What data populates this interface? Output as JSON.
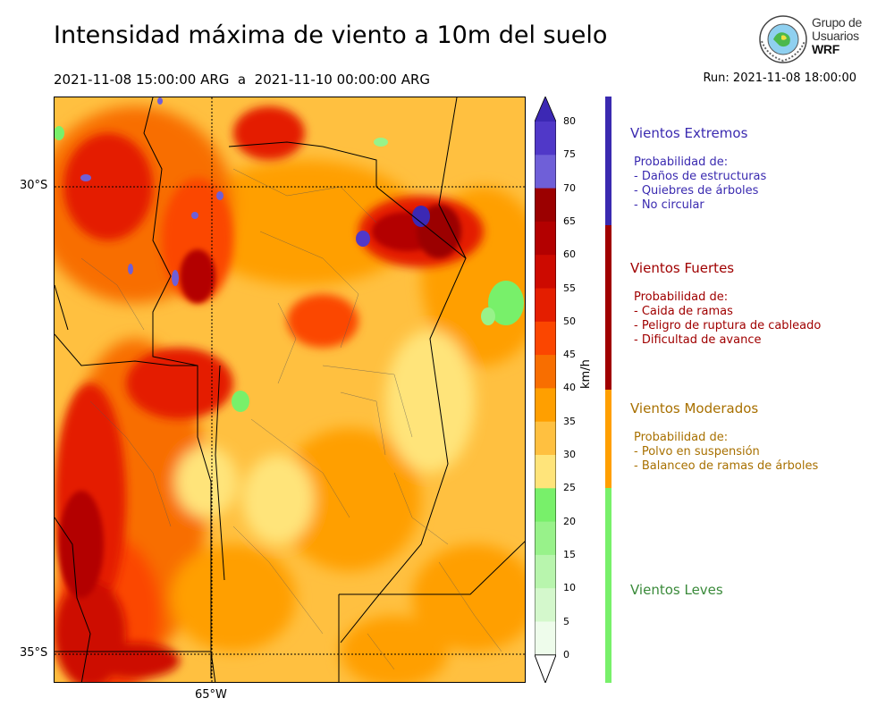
{
  "title": "Intensidad máxima de viento a 10m del suelo",
  "period": "2021-11-08 15:00:00 ARG  a  2021-11-10 00:00:00 ARG",
  "run": "Run: 2021-11-08 18:00:00",
  "logo": {
    "line1": "Grupo de",
    "line2": "Usuarios",
    "line3": "WRF"
  },
  "axes": {
    "lat_top": "30°S",
    "lat_bottom": "35°S",
    "lon": "65°W"
  },
  "colorbar": {
    "unit": "km/h",
    "ticks": [
      "80",
      "75",
      "70",
      "65",
      "60",
      "55",
      "50",
      "45",
      "40",
      "35",
      "30",
      "25",
      "20",
      "15",
      "10",
      "5",
      "0"
    ],
    "colors": [
      "#3c28b4",
      "#5038c8",
      "#6f5fd8",
      "#9b0000",
      "#b30000",
      "#cd0a00",
      "#e41e00",
      "#fb4600",
      "#f86e00",
      "#ff9f00",
      "#ffc040",
      "#ffe47a",
      "#78f06a",
      "#98f28a",
      "#b8f5ad",
      "#d4f8cc",
      "#eefceb"
    ]
  },
  "categories": [
    {
      "title": "Vientos Extremos",
      "color": "#3a2ab0",
      "lines": [
        "Probabilidad de:",
        "- Daños de estructuras",
        "- Quiebres de árboles",
        "- No circular"
      ]
    },
    {
      "title": "Vientos Fuertes",
      "color": "#a00000",
      "lines": [
        "Probabilidad de:",
        "- Caida de ramas",
        "- Peligro de ruptura de cableado",
        "- Dificultad de avance"
      ]
    },
    {
      "title": "Vientos Moderados",
      "color": "#a87000",
      "lines": [
        "Probabilidad de:",
        "- Polvo en suspensión",
        "- Balanceo de ramas de árboles"
      ]
    },
    {
      "title": "Vientos Leves",
      "color": "#3a8a3a",
      "lines": []
    }
  ]
}
